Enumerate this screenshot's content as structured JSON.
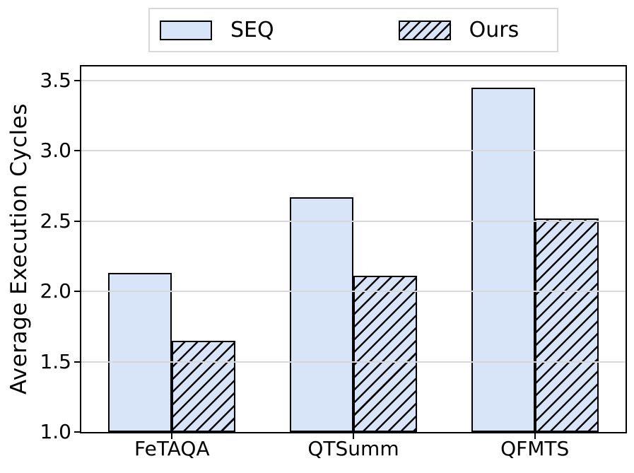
{
  "chart_data": {
    "type": "bar",
    "title": "",
    "categories": [
      "FeTAQA",
      "QTSumm",
      "QFMTS"
    ],
    "series": [
      {
        "name": "SEQ",
        "style": "solid",
        "values": [
          2.13,
          2.67,
          3.45
        ]
      },
      {
        "name": "Ours",
        "style": "hatched",
        "values": [
          1.65,
          2.11,
          2.52
        ]
      }
    ],
    "xlabel": "",
    "ylabel": "Average Execution Cycles",
    "ylim": [
      1.0,
      3.6
    ],
    "yticks": [
      1.0,
      1.5,
      2.0,
      2.5,
      3.0,
      3.5
    ],
    "ytick_decimals": 1,
    "grid": true,
    "grid_on_top": true,
    "legend_position": "top-center",
    "colors": {
      "bar_fill": "#d8e4f8",
      "bar_edge": "#000000",
      "hatch": "#0a0a0a",
      "grid": "#d8d8d8",
      "axis": "#000000",
      "text": "#000000",
      "legend_border": "#d9d9d9"
    }
  }
}
